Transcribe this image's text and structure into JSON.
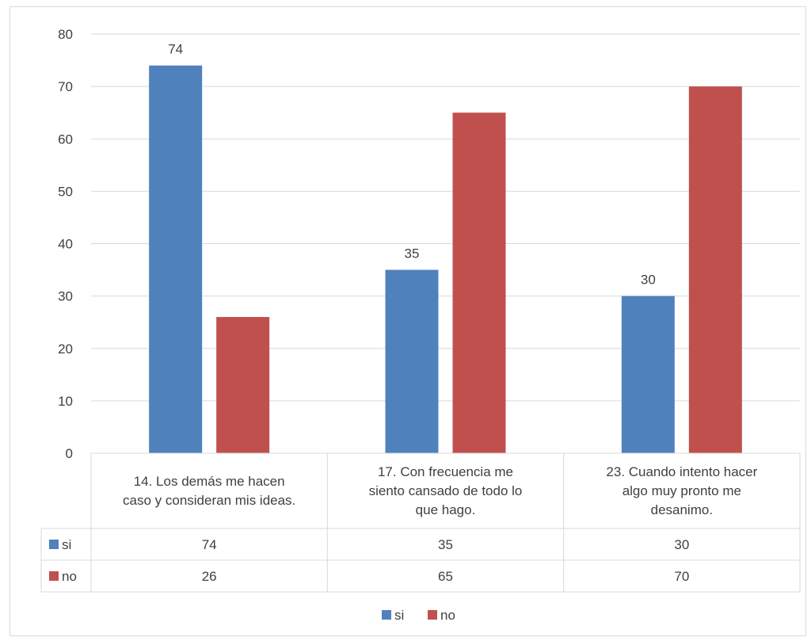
{
  "chart_data": {
    "type": "bar",
    "categories": [
      [
        "14. Los demás me hacen",
        "caso y consideran mis ideas."
      ],
      [
        "17. Con frecuencia me",
        "siento cansado de todo lo",
        "que hago."
      ],
      [
        "23. Cuando intento hacer",
        "algo muy pronto me",
        "desanimo."
      ]
    ],
    "series": [
      {
        "name": "si",
        "values": [
          74,
          35,
          30
        ],
        "color": "#4f81bd",
        "data_labels": [
          74,
          35,
          30
        ]
      },
      {
        "name": "no",
        "values": [
          26,
          65,
          70
        ],
        "color": "#c0504d",
        "data_labels": []
      }
    ],
    "ylim": [
      0,
      80
    ],
    "yticks": [
      0,
      10,
      20,
      30,
      40,
      50,
      60,
      70,
      80
    ],
    "grid": true,
    "data_table": true,
    "legend_position": "bottom"
  }
}
